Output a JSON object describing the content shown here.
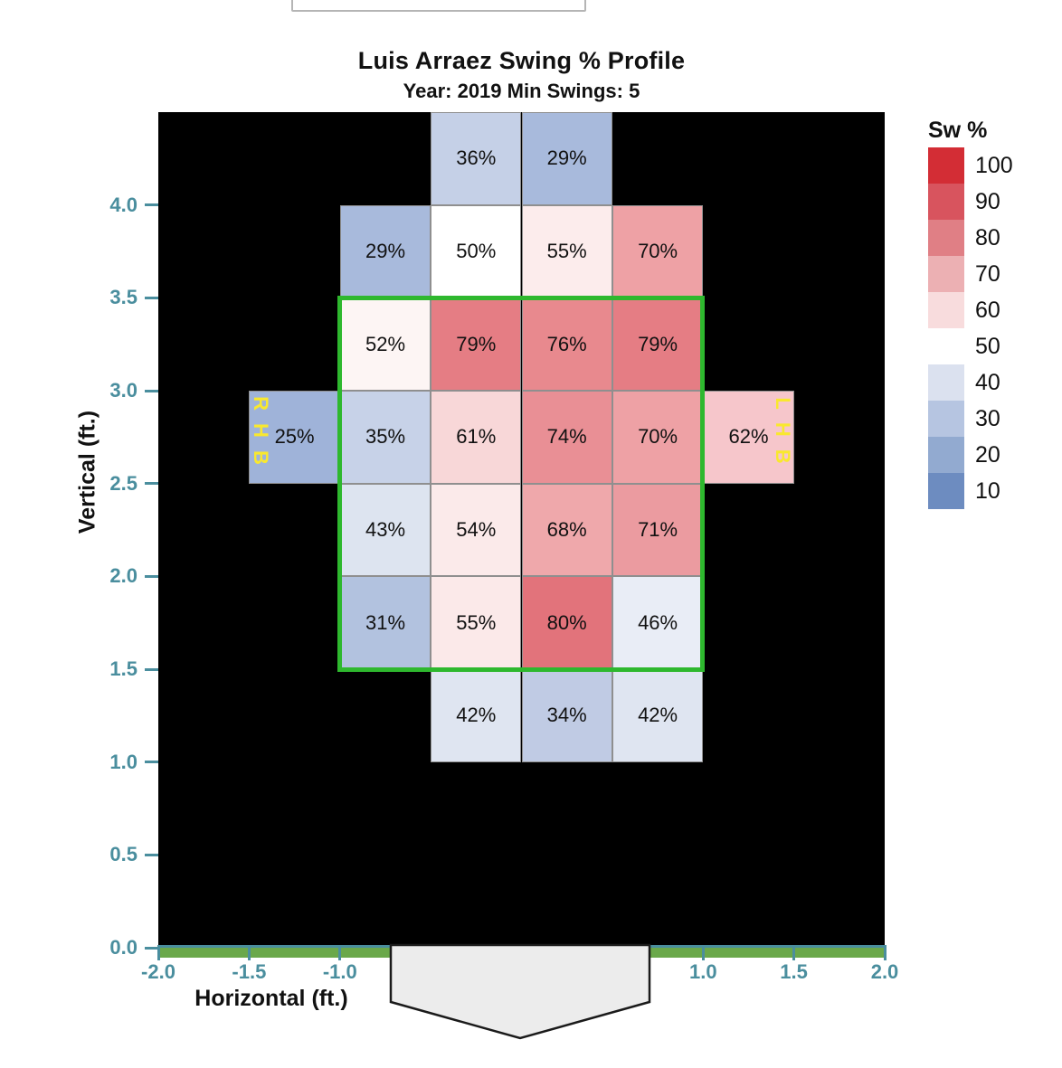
{
  "top_input": {
    "value": ""
  },
  "handedness": {
    "right": "RHB",
    "left": "LHB",
    "color": "#f9e82e"
  },
  "legend": {
    "title": "Sw %",
    "entries": [
      {
        "label": "100",
        "color": "#d32d35"
      },
      {
        "label": "90",
        "color": "#d8545e"
      },
      {
        "label": "80",
        "color": "#e07f85"
      },
      {
        "label": "70",
        "color": "#ecb0b3"
      },
      {
        "label": "60",
        "color": "#f8dcdd"
      },
      {
        "label": "50",
        "color": "#ffffff"
      },
      {
        "label": "40",
        "color": "#dbe1ef"
      },
      {
        "label": "30",
        "color": "#b6c5e1"
      },
      {
        "label": "20",
        "color": "#92aad0"
      },
      {
        "label": "10",
        "color": "#6d8cc0"
      }
    ]
  },
  "colors": {
    "plot_bg": "#000000",
    "axis_teal": "#4a8e9e",
    "grass_green": "#6aa84a",
    "zone_green": "#2eb82e",
    "plate_fill": "#ececec"
  },
  "chart_data": {
    "type": "heatmap",
    "title": "Luis Arraez Swing % Profile",
    "subtitle": "Year: 2019 Min Swings: 5",
    "xlabel": "Horizontal (ft.)",
    "ylabel": "Vertical (ft.)",
    "x_range": [
      -2.0,
      2.0
    ],
    "y_range": [
      0.0,
      4.5
    ],
    "bin_size_ft": 0.5,
    "x_ticks": [
      -2.0,
      -1.5,
      -1.0,
      1.0,
      1.5,
      2.0
    ],
    "y_ticks": [
      0.0,
      0.5,
      1.0,
      1.5,
      2.0,
      2.5,
      3.0,
      3.5,
      4.0
    ],
    "strike_zone": {
      "x": [
        -1.0,
        1.0
      ],
      "y": [
        1.5,
        3.5
      ]
    },
    "units": "percent swings",
    "cells": [
      {
        "x": -0.25,
        "y": 4.25,
        "value": 36,
        "color": "#c5d0e7"
      },
      {
        "x": 0.25,
        "y": 4.25,
        "value": 29,
        "color": "#a8badc"
      },
      {
        "x": -0.75,
        "y": 3.75,
        "value": 29,
        "color": "#a8badc"
      },
      {
        "x": -0.25,
        "y": 3.75,
        "value": 50,
        "color": "#ffffff"
      },
      {
        "x": 0.25,
        "y": 3.75,
        "value": 55,
        "color": "#fcecec"
      },
      {
        "x": 0.75,
        "y": 3.75,
        "value": 70,
        "color": "#eea1a5"
      },
      {
        "x": -0.75,
        "y": 3.25,
        "value": 52,
        "color": "#fdf5f4"
      },
      {
        "x": -0.25,
        "y": 3.25,
        "value": 79,
        "color": "#e57d84"
      },
      {
        "x": 0.25,
        "y": 3.25,
        "value": 76,
        "color": "#e8898e"
      },
      {
        "x": 0.75,
        "y": 3.25,
        "value": 79,
        "color": "#e57d84"
      },
      {
        "x": -1.25,
        "y": 2.75,
        "value": 25,
        "color": "#9fb3d9"
      },
      {
        "x": -0.75,
        "y": 2.75,
        "value": 35,
        "color": "#c7d2e8"
      },
      {
        "x": -0.25,
        "y": 2.75,
        "value": 61,
        "color": "#f8d7d8"
      },
      {
        "x": 0.25,
        "y": 2.75,
        "value": 74,
        "color": "#e98f95"
      },
      {
        "x": 0.75,
        "y": 2.75,
        "value": 70,
        "color": "#eea1a5"
      },
      {
        "x": 1.25,
        "y": 2.75,
        "value": 62,
        "color": "#f6c6cb"
      },
      {
        "x": -0.75,
        "y": 2.25,
        "value": 43,
        "color": "#dde4f0"
      },
      {
        "x": -0.25,
        "y": 2.25,
        "value": 54,
        "color": "#fbeaea"
      },
      {
        "x": 0.25,
        "y": 2.25,
        "value": 68,
        "color": "#efa8ab"
      },
      {
        "x": 0.75,
        "y": 2.25,
        "value": 71,
        "color": "#eb9ba0"
      },
      {
        "x": -0.75,
        "y": 1.75,
        "value": 31,
        "color": "#b2c2df"
      },
      {
        "x": -0.25,
        "y": 1.75,
        "value": 55,
        "color": "#fbe9e9"
      },
      {
        "x": 0.25,
        "y": 1.75,
        "value": 80,
        "color": "#e2737b"
      },
      {
        "x": 0.75,
        "y": 1.75,
        "value": 46,
        "color": "#e9edf6"
      },
      {
        "x": -0.25,
        "y": 1.25,
        "value": 42,
        "color": "#dfe5f1"
      },
      {
        "x": 0.25,
        "y": 1.25,
        "value": 34,
        "color": "#c0cbe4"
      },
      {
        "x": 0.75,
        "y": 1.25,
        "value": 42,
        "color": "#dfe5f1"
      }
    ]
  }
}
